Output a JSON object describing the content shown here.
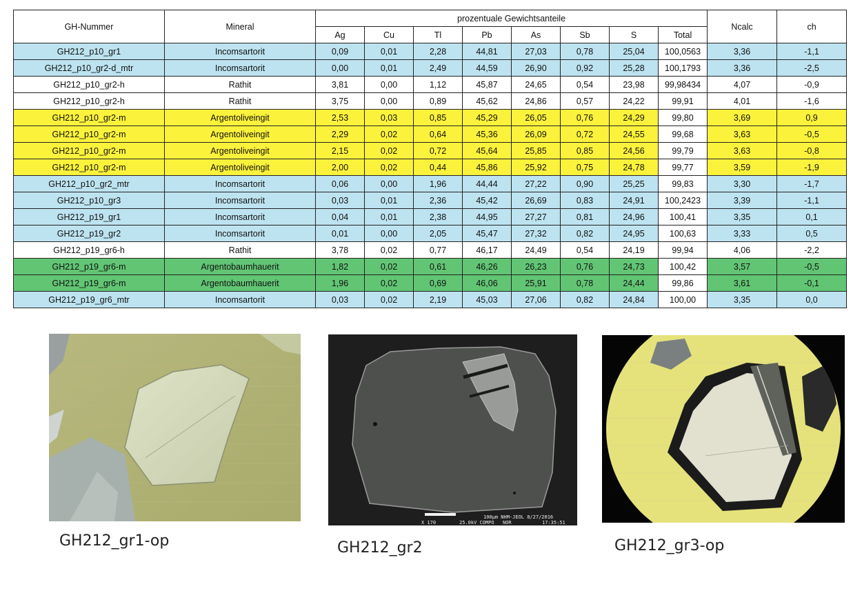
{
  "table": {
    "group_header": "prozentuale Gewichtsanteile",
    "headers": {
      "id": "GH-Nummer",
      "mineral": "Mineral",
      "elements": [
        "Ag",
        "Cu",
        "Tl",
        "Pb",
        "As",
        "Sb",
        "S",
        "Total"
      ],
      "ncalc": "Ncalc",
      "ch": "ch"
    },
    "rows": [
      {
        "id": "GH212_p10_gr1",
        "mineral": "Incomsartorit",
        "vals": [
          "0,09",
          "0,01",
          "2,28",
          "44,81",
          "27,03",
          "0,78",
          "25,04",
          "100,0563"
        ],
        "ncalc": "3,36",
        "ch": "-1,1",
        "color": "blue"
      },
      {
        "id": "GH212_p10_gr2-d_mtr",
        "mineral": "Incomsartorit",
        "vals": [
          "0,00",
          "0,01",
          "2,49",
          "44,59",
          "26,90",
          "0,92",
          "25,28",
          "100,1793"
        ],
        "ncalc": "3,36",
        "ch": "-2,5",
        "color": "blue"
      },
      {
        "id": "GH212_p10_gr2-h",
        "mineral": "Rathit",
        "vals": [
          "3,81",
          "0,00",
          "1,12",
          "45,87",
          "24,65",
          "0,54",
          "23,98",
          "99,98434"
        ],
        "ncalc": "4,07",
        "ch": "-0,9",
        "color": "white"
      },
      {
        "id": "GH212_p10_gr2-h",
        "mineral": "Rathit",
        "vals": [
          "3,75",
          "0,00",
          "0,89",
          "45,62",
          "24,86",
          "0,57",
          "24,22",
          "99,91"
        ],
        "ncalc": "4,01",
        "ch": "-1,6",
        "color": "white"
      },
      {
        "id": "GH212_p10_gr2-m",
        "mineral": "Argentoliveingit",
        "vals": [
          "2,53",
          "0,03",
          "0,85",
          "45,29",
          "26,05",
          "0,76",
          "24,29",
          "99,80"
        ],
        "ncalc": "3,69",
        "ch": "0,9",
        "color": "yellow"
      },
      {
        "id": "GH212_p10_gr2-m",
        "mineral": "Argentoliveingit",
        "vals": [
          "2,29",
          "0,02",
          "0,64",
          "45,36",
          "26,09",
          "0,72",
          "24,55",
          "99,68"
        ],
        "ncalc": "3,63",
        "ch": "-0,5",
        "color": "yellow"
      },
      {
        "id": "GH212_p10_gr2-m",
        "mineral": "Argentoliveingit",
        "vals": [
          "2,15",
          "0,02",
          "0,72",
          "45,64",
          "25,85",
          "0,85",
          "24,56",
          "99,79"
        ],
        "ncalc": "3,63",
        "ch": "-0,8",
        "color": "yellow"
      },
      {
        "id": "GH212_p10_gr2-m",
        "mineral": "Argentoliveingit",
        "vals": [
          "2,00",
          "0,02",
          "0,44",
          "45,86",
          "25,92",
          "0,75",
          "24,78",
          "99,77"
        ],
        "ncalc": "3,59",
        "ch": "-1,9",
        "color": "yellow"
      },
      {
        "id": "GH212_p10_gr2_mtr",
        "mineral": "Incomsartorit",
        "vals": [
          "0,06",
          "0,00",
          "1,96",
          "44,44",
          "27,22",
          "0,90",
          "25,25",
          "99,83"
        ],
        "ncalc": "3,30",
        "ch": "-1,7",
        "color": "blue"
      },
      {
        "id": "GH212_p10_gr3",
        "mineral": "Incomsartorit",
        "vals": [
          "0,03",
          "0,01",
          "2,36",
          "45,42",
          "26,69",
          "0,83",
          "24,91",
          "100,2423"
        ],
        "ncalc": "3,39",
        "ch": "-1,1",
        "color": "blue"
      },
      {
        "id": "GH212_p19_gr1",
        "mineral": "Incomsartorit",
        "vals": [
          "0,04",
          "0,01",
          "2,38",
          "44,95",
          "27,27",
          "0,81",
          "24,96",
          "100,41"
        ],
        "ncalc": "3,35",
        "ch": "0,1",
        "color": "blue"
      },
      {
        "id": "GH212_p19_gr2",
        "mineral": "Incomsartorit",
        "vals": [
          "0,01",
          "0,00",
          "2,05",
          "45,47",
          "27,32",
          "0,82",
          "24,95",
          "100,63"
        ],
        "ncalc": "3,33",
        "ch": "0,5",
        "color": "blue"
      },
      {
        "id": "GH212_p19_gr6-h",
        "mineral": "Rathit",
        "vals": [
          "3,78",
          "0,02",
          "0,77",
          "46,17",
          "24,49",
          "0,54",
          "24,19",
          "99,94"
        ],
        "ncalc": "4,06",
        "ch": "-2,2",
        "color": "white"
      },
      {
        "id": "GH212_p19_gr6-m",
        "mineral": "Argentobaumhauerit",
        "vals": [
          "1,82",
          "0,02",
          "0,61",
          "46,26",
          "26,23",
          "0,76",
          "24,73",
          "100,42"
        ],
        "ncalc": "3,57",
        "ch": "-0,5",
        "color": "green"
      },
      {
        "id": "GH212_p19_gr6-m",
        "mineral": "Argentobaumhauerit",
        "vals": [
          "1,96",
          "0,02",
          "0,69",
          "46,06",
          "25,91",
          "0,78",
          "24,44",
          "99,86"
        ],
        "ncalc": "3,61",
        "ch": "-0,1",
        "color": "green"
      },
      {
        "id": "GH212_p19_gr6_mtr",
        "mineral": "Incomsartorit",
        "vals": [
          "0,03",
          "0,02",
          "2,19",
          "45,03",
          "27,06",
          "0,82",
          "24,84",
          "100,00"
        ],
        "ncalc": "3,35",
        "ch": "0,0",
        "color": "blue"
      }
    ]
  },
  "images": {
    "sem_scale_text": "100µm NHM-JEOL 8/27/2016",
    "sem_mag_text": "X 170",
    "sem_kv_text": "25.0kV COMPO",
    "sem_mode_text": "NOR",
    "sem_time_text": "17:35:51"
  },
  "captions": [
    "GH212_gr1-op",
    "GH212_gr2",
    "GH212_gr3-op"
  ]
}
